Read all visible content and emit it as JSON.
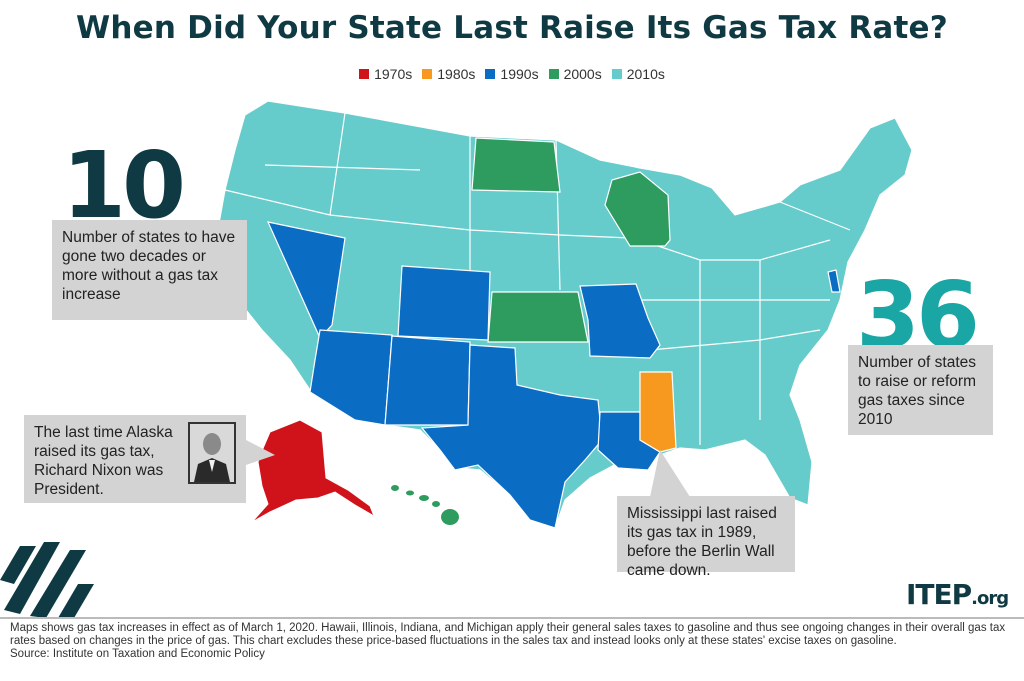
{
  "title": "When Did Your State Last Raise Its Gas Tax Rate?",
  "legend": [
    {
      "label": "1970s",
      "color": "#d0131a"
    },
    {
      "label": "1980s",
      "color": "#f7991e"
    },
    {
      "label": "1990s",
      "color": "#0b6cc4"
    },
    {
      "label": "2000s",
      "color": "#2e9b5f"
    },
    {
      "label": "2010s",
      "color": "#66cccb"
    }
  ],
  "states": {
    "1970s": [
      "Alaska"
    ],
    "1980s": [
      "Mississippi"
    ],
    "1990s": [
      "Nevada",
      "Arizona",
      "Colorado",
      "New Mexico",
      "Texas",
      "Missouri",
      "Louisiana",
      "Delaware"
    ],
    "2000s": [
      "North Dakota",
      "Kansas",
      "Wisconsin",
      "Hawaii"
    ]
  },
  "stat_10": {
    "number": "10",
    "text": "Number of states to have gone two decades or more without a gas tax increase"
  },
  "stat_36": {
    "number": "36",
    "text": "Number of states to raise or reform gas taxes since 2010"
  },
  "alaska_callout": "The last time Alaska raised its gas tax, Richard Nixon was President.",
  "mississippi_callout": "Mississippi last raised its gas tax in 1989, before the Berlin Wall came down.",
  "logo": {
    "main": "ITEP",
    "suffix": ".org"
  },
  "footer": {
    "note": "Maps shows gas tax increases in effect as of March 1, 2020. Hawaii, Illinois, Indiana, and Michigan apply their general sales taxes to gasoline and thus see ongoing changes in their overall gas tax rates based on changes in the price of gas. This chart excludes these price-based fluctuations in the sales tax and instead looks only at these states' excise taxes on gasoline.",
    "source": "Source: Institute on Taxation and Economic Policy"
  }
}
